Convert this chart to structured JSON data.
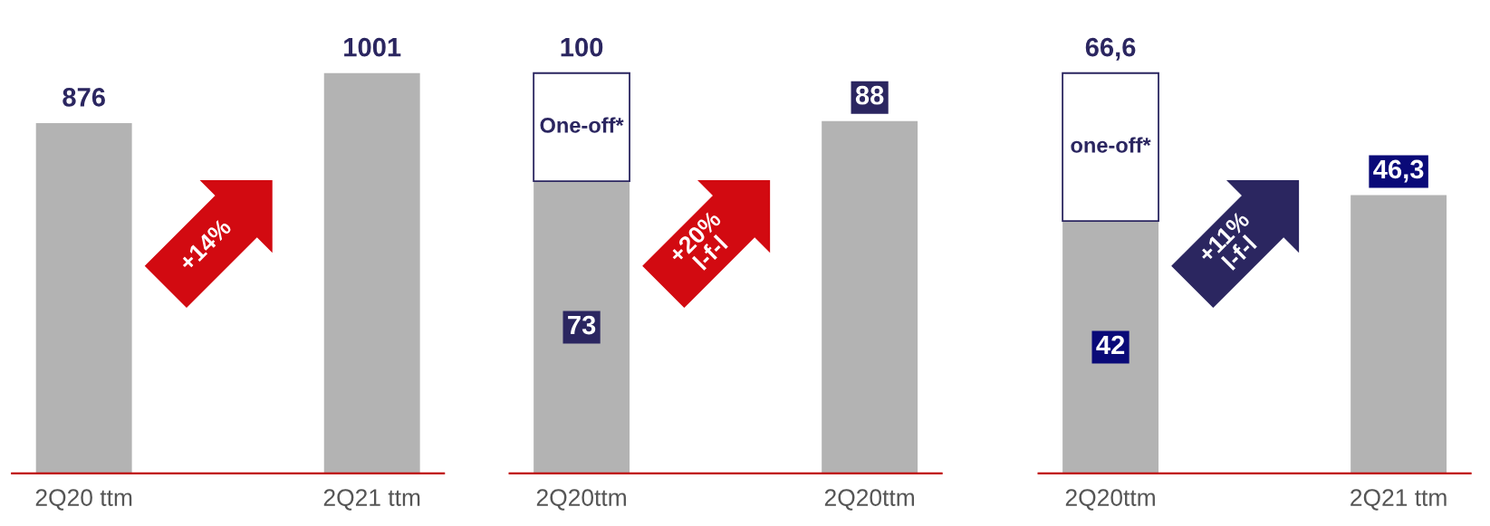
{
  "chart_data": [
    {
      "type": "bar",
      "categories": [
        "2Q20 ttm",
        "2Q21 ttm"
      ],
      "tick_labels": "x",
      "series": [
        {
          "color": "#b3b3b3",
          "values": [
            876,
            1001
          ],
          "value_labels": [
            "876",
            "1001"
          ]
        }
      ],
      "annotations": [
        "+14%"
      ]
    },
    {
      "type": "bar",
      "categories": [
        "2Q20ttm",
        "2Q20ttm"
      ],
      "tick_labels": "x",
      "stacked": true,
      "series": [
        {
          "color": "#b3b3b3",
          "values": [
            73,
            88
          ],
          "value_labels": [
            "73",
            "88"
          ]
        },
        {
          "color": "#ffffff",
          "values": [
            27,
            null
          ],
          "value_labels": [
            "One-off*",
            null
          ]
        }
      ],
      "totals": [
        "100",
        null
      ],
      "annotations": [
        "+20%\nl-f-l"
      ]
    },
    {
      "type": "bar",
      "categories": [
        "2Q20ttm",
        "2Q21 ttm"
      ],
      "tick_labels": "x",
      "stacked": true,
      "series": [
        {
          "color": "#b3b3b3",
          "values": [
            42,
            46.3
          ],
          "value_labels": [
            "42",
            "46,3"
          ]
        },
        {
          "color": "#ffffff",
          "values": [
            24.6,
            null
          ],
          "value_labels": [
            "one-off*",
            null
          ]
        }
      ],
      "totals": [
        "66,6",
        null
      ],
      "annotations": [
        "+11%\nl-f-l"
      ]
    }
  ]
}
